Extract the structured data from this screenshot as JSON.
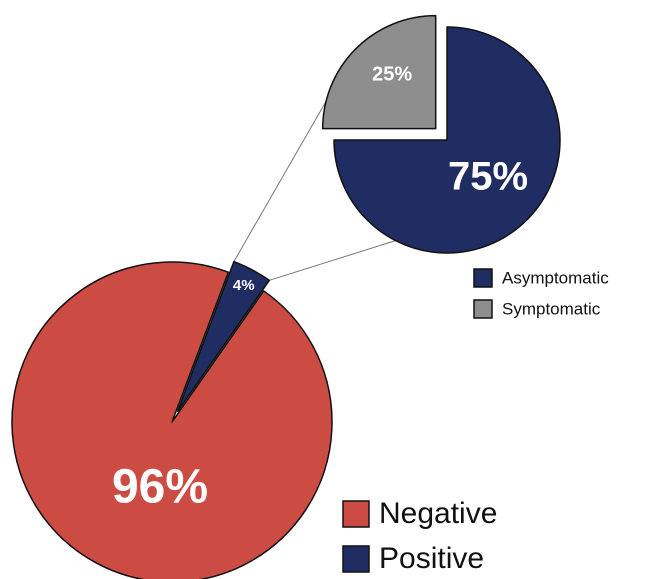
{
  "chart_data": [
    {
      "type": "pie",
      "role": "main",
      "slices": [
        {
          "name": "Negative",
          "value": 96,
          "label": "96%",
          "color": "#cc4c44"
        },
        {
          "name": "Positive",
          "value": 4,
          "label": "4%",
          "color": "#1f2d63"
        }
      ],
      "legend": {
        "position": "bottom-right",
        "entries": [
          "Negative",
          "Positive"
        ]
      },
      "exploded_slice": "Positive"
    },
    {
      "type": "pie",
      "role": "breakdown-of-positive",
      "slices": [
        {
          "name": "Asymptomatic",
          "value": 75,
          "label": "75%",
          "color": "#1f2d63"
        },
        {
          "name": "Symptomatic",
          "value": 25,
          "label": "25%",
          "color": "#8e8e8e"
        }
      ],
      "legend": {
        "position": "right",
        "entries": [
          "Asymptomatic",
          "Symptomatic"
        ]
      },
      "exploded_slice": "Symptomatic"
    }
  ]
}
